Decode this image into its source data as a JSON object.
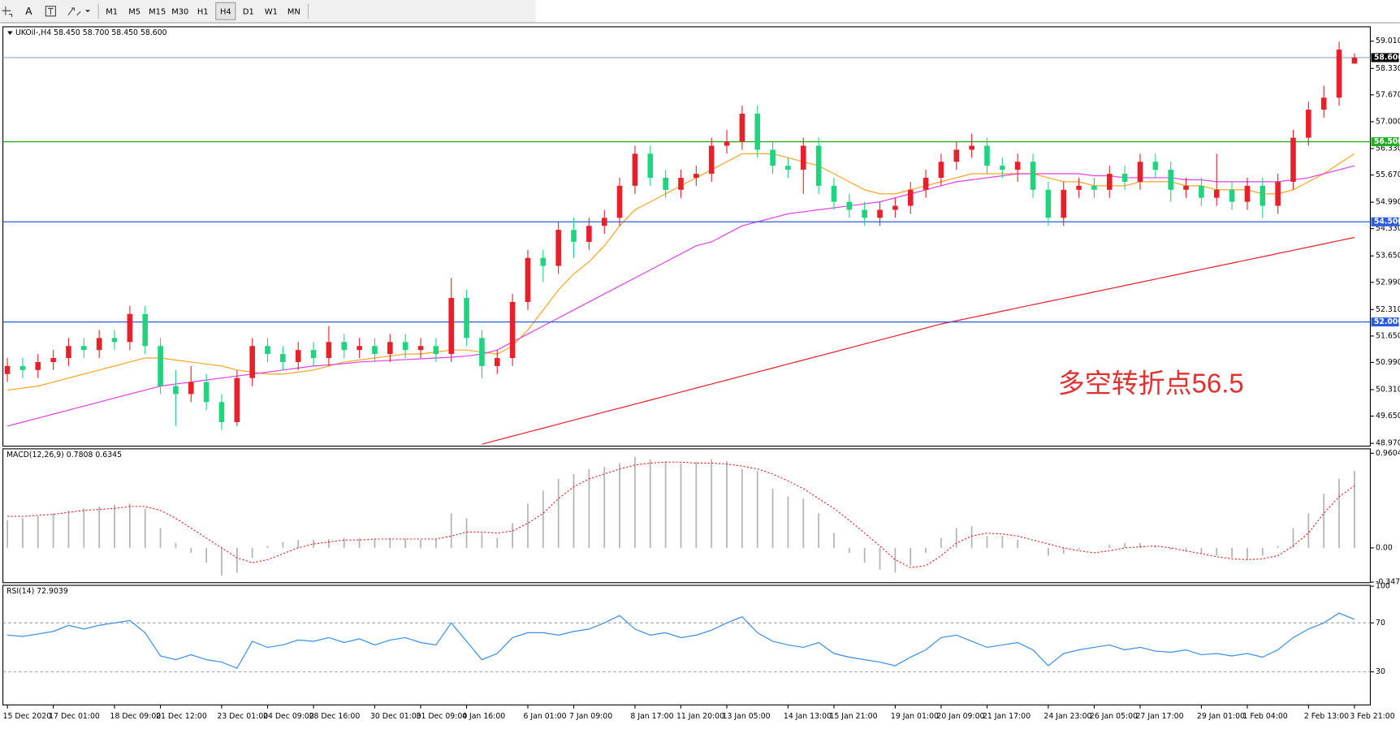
{
  "toolbar": {
    "tools": [
      "A"
    ],
    "timeframes": [
      "M1",
      "M5",
      "M15",
      "M30",
      "H1",
      "H4",
      "D1",
      "W1",
      "MN"
    ],
    "active_timeframe": 5
  },
  "chart_data": [
    {
      "type": "candlestick",
      "title": "UKOil-,H4  58.450 58.700 58.450 58.600",
      "categories": [
        "15 Dec 2020",
        null,
        null,
        "17 Dec 01:00",
        null,
        null,
        null,
        "18 Dec 09:00",
        null,
        null,
        "21 Dec 12:00",
        null,
        null,
        null,
        "23 Dec 01:00",
        null,
        null,
        "24 Dec 09:00",
        null,
        null,
        "28 Dec 16:00",
        null,
        null,
        null,
        "30 Dec 01:00",
        null,
        null,
        "31 Dec 09:00",
        null,
        null,
        "4 Jan 16:00",
        null,
        null,
        null,
        "6 Jan 01:00",
        null,
        null,
        "7 Jan 09:00",
        null,
        null,
        null,
        "8 Jan 17:00",
        null,
        null,
        "11 Jan 20:00",
        null,
        null,
        "13 Jan 05:00",
        null,
        null,
        null,
        "14 Jan 13:00",
        null,
        null,
        "15 Jan 21:00",
        null,
        null,
        null,
        "19 Jan 01:00",
        null,
        null,
        "20 Jan 09:00",
        null,
        null,
        "21 Jan 17:00",
        null,
        null,
        null,
        "24 Jan 23:00",
        null,
        null,
        "26 Jan 05:00",
        null,
        null,
        "27 Jan 17:00",
        null,
        null,
        null,
        "29 Jan 01:00",
        null,
        null,
        "1 Feb 04:00",
        null,
        null,
        null,
        "2 Feb 13:00",
        null,
        null,
        "3 Feb 21:00"
      ],
      "open": [
        50.7,
        50.9,
        50.8,
        51.0,
        51.1,
        51.4,
        51.3,
        51.6,
        51.5,
        52.2,
        51.4,
        50.4,
        50.2,
        50.5,
        50.0,
        49.5,
        50.6,
        51.4,
        51.2,
        51.0,
        51.3,
        51.1,
        51.5,
        51.3,
        51.4,
        51.2,
        51.5,
        51.3,
        51.4,
        51.2,
        52.6,
        51.6,
        50.9,
        51.1,
        52.5,
        53.6,
        53.4,
        54.3,
        54.0,
        54.4,
        54.6,
        55.4,
        56.2,
        55.6,
        55.3,
        55.6,
        55.7,
        56.4,
        56.5,
        57.2,
        56.3,
        55.9,
        55.8,
        56.4,
        55.4,
        55.0,
        54.8,
        54.6,
        54.8,
        54.9,
        55.3,
        55.6,
        56.0,
        56.3,
        56.4,
        55.9,
        55.8,
        56.0,
        55.3,
        54.6,
        55.3,
        55.4,
        55.3,
        55.7,
        55.5,
        56.0,
        55.8,
        55.3,
        55.4,
        55.1,
        55.3,
        55.0,
        55.4,
        54.9,
        55.5,
        56.6,
        57.3,
        57.6,
        58.45
      ],
      "high": [
        51.1,
        51.1,
        51.2,
        51.3,
        51.6,
        51.6,
        51.8,
        51.8,
        52.4,
        52.4,
        51.6,
        50.8,
        50.9,
        50.7,
        50.2,
        50.8,
        51.6,
        51.6,
        51.4,
        51.5,
        51.5,
        51.9,
        51.7,
        51.6,
        51.6,
        51.7,
        51.7,
        51.6,
        51.6,
        53.1,
        52.8,
        51.8,
        51.3,
        52.7,
        53.8,
        53.8,
        54.5,
        54.6,
        54.6,
        54.8,
        55.6,
        56.4,
        56.4,
        55.8,
        55.8,
        55.9,
        56.6,
        56.8,
        57.4,
        57.4,
        56.5,
        56.1,
        56.6,
        56.6,
        55.6,
        55.2,
        55.0,
        55.0,
        55.1,
        55.5,
        55.8,
        56.2,
        56.5,
        56.7,
        56.6,
        56.1,
        56.2,
        56.2,
        55.5,
        55.5,
        55.6,
        55.6,
        55.9,
        55.9,
        56.2,
        56.2,
        56.0,
        55.6,
        55.6,
        56.2,
        55.5,
        55.6,
        55.6,
        55.7,
        56.8,
        57.5,
        57.9,
        59.0,
        58.7
      ],
      "low": [
        50.5,
        50.6,
        50.6,
        50.8,
        50.9,
        51.1,
        51.1,
        51.3,
        51.3,
        51.2,
        50.2,
        49.4,
        50.0,
        49.8,
        49.3,
        49.4,
        50.4,
        51.0,
        50.8,
        50.8,
        50.9,
        50.9,
        51.1,
        51.1,
        51.0,
        51.0,
        51.1,
        51.1,
        51.0,
        51.0,
        51.4,
        50.6,
        50.7,
        50.9,
        52.3,
        53.0,
        53.2,
        53.6,
        53.8,
        54.2,
        54.4,
        55.2,
        55.4,
        55.1,
        55.1,
        55.4,
        55.5,
        56.2,
        56.3,
        56.1,
        55.7,
        55.6,
        55.2,
        55.2,
        54.8,
        54.6,
        54.4,
        54.4,
        54.6,
        54.7,
        55.1,
        55.4,
        55.8,
        56.1,
        55.7,
        55.6,
        55.5,
        55.1,
        54.4,
        54.4,
        55.1,
        55.1,
        55.1,
        55.3,
        55.3,
        55.6,
        55.0,
        55.1,
        54.9,
        54.9,
        54.8,
        54.8,
        54.6,
        54.7,
        55.3,
        56.4,
        57.1,
        57.4,
        58.45
      ],
      "close": [
        50.9,
        50.8,
        51.0,
        51.1,
        51.4,
        51.3,
        51.6,
        51.5,
        52.2,
        51.4,
        50.4,
        50.2,
        50.5,
        50.0,
        49.5,
        50.6,
        51.4,
        51.2,
        51.0,
        51.3,
        51.1,
        51.5,
        51.3,
        51.4,
        51.2,
        51.5,
        51.3,
        51.4,
        51.2,
        52.6,
        51.6,
        50.9,
        51.1,
        52.5,
        53.6,
        53.4,
        54.3,
        54.0,
        54.4,
        54.6,
        55.4,
        56.2,
        55.6,
        55.3,
        55.6,
        55.7,
        56.4,
        56.5,
        57.2,
        56.3,
        55.9,
        55.8,
        56.4,
        55.4,
        55.0,
        54.8,
        54.6,
        54.8,
        54.9,
        55.3,
        55.6,
        56.0,
        56.3,
        56.4,
        55.9,
        55.8,
        56.0,
        55.3,
        54.6,
        55.3,
        55.4,
        55.3,
        55.7,
        55.5,
        56.0,
        55.8,
        55.3,
        55.4,
        55.1,
        55.3,
        55.0,
        55.4,
        54.9,
        55.5,
        56.6,
        57.3,
        57.6,
        58.8,
        58.6
      ],
      "up_color": "#e8202a",
      "down_color": "#1fd37f",
      "moving_averages": [
        {
          "color": "#f5a623",
          "values": [
            50.3,
            50.35,
            50.4,
            50.5,
            50.6,
            50.7,
            50.8,
            50.9,
            51.0,
            51.1,
            51.1,
            51.05,
            51.0,
            50.95,
            50.9,
            50.8,
            50.75,
            50.7,
            50.7,
            50.75,
            50.8,
            50.9,
            51.0,
            51.05,
            51.1,
            51.15,
            51.2,
            51.2,
            51.25,
            51.3,
            51.3,
            51.25,
            51.2,
            51.4,
            51.8,
            52.3,
            52.8,
            53.2,
            53.5,
            53.9,
            54.4,
            54.8,
            55.0,
            55.2,
            55.4,
            55.6,
            55.8,
            56.0,
            56.2,
            56.2,
            56.2,
            56.1,
            56.0,
            55.9,
            55.7,
            55.5,
            55.3,
            55.2,
            55.2,
            55.3,
            55.4,
            55.5,
            55.6,
            55.7,
            55.7,
            55.7,
            55.7,
            55.7,
            55.6,
            55.5,
            55.5,
            55.4,
            55.4,
            55.4,
            55.5,
            55.5,
            55.5,
            55.4,
            55.4,
            55.3,
            55.3,
            55.3,
            55.2,
            55.2,
            55.3,
            55.5,
            55.7,
            55.95,
            56.2
          ]
        },
        {
          "color": "#e040e0",
          "values": [
            49.4,
            49.5,
            49.6,
            49.7,
            49.8,
            49.9,
            50.0,
            50.1,
            50.2,
            50.3,
            50.4,
            50.45,
            50.5,
            50.55,
            50.6,
            50.65,
            50.7,
            50.75,
            50.8,
            50.85,
            50.9,
            50.93,
            50.96,
            51.0,
            51.02,
            51.04,
            51.06,
            51.08,
            51.1,
            51.12,
            51.15,
            51.2,
            51.3,
            51.5,
            51.7,
            51.9,
            52.1,
            52.3,
            52.5,
            52.7,
            52.9,
            53.1,
            53.3,
            53.5,
            53.7,
            53.9,
            54.0,
            54.2,
            54.4,
            54.5,
            54.6,
            54.7,
            54.75,
            54.8,
            54.85,
            54.9,
            54.95,
            55.0,
            55.1,
            55.2,
            55.3,
            55.4,
            55.5,
            55.55,
            55.6,
            55.65,
            55.7,
            55.7,
            55.7,
            55.7,
            55.7,
            55.65,
            55.65,
            55.6,
            55.6,
            55.6,
            55.6,
            55.55,
            55.55,
            55.5,
            55.5,
            55.5,
            55.5,
            55.5,
            55.55,
            55.6,
            55.7,
            55.8,
            55.9
          ]
        },
        {
          "color": "#e8202a",
          "values": [
            null,
            null,
            null,
            null,
            null,
            null,
            null,
            null,
            null,
            null,
            null,
            null,
            null,
            null,
            null,
            null,
            null,
            null,
            null,
            null,
            null,
            null,
            null,
            null,
            null,
            null,
            null,
            null,
            null,
            null,
            null,
            48.95,
            49.05,
            49.15,
            49.25,
            49.35,
            49.45,
            49.55,
            49.65,
            49.75,
            49.85,
            49.95,
            50.05,
            50.15,
            50.25,
            50.35,
            50.45,
            50.55,
            50.65,
            50.75,
            50.85,
            50.95,
            51.05,
            51.15,
            51.25,
            51.35,
            51.45,
            51.55,
            51.65,
            51.75,
            51.85,
            51.95,
            52.03,
            52.11,
            52.19,
            52.27,
            52.35,
            52.43,
            52.51,
            52.59,
            52.67,
            52.75,
            52.83,
            52.91,
            52.99,
            53.07,
            53.15,
            53.23,
            53.31,
            53.39,
            53.47,
            53.55,
            53.63,
            53.71,
            53.79,
            53.87,
            53.95,
            54.03,
            54.11
          ]
        }
      ],
      "hlines": [
        {
          "value": 58.6,
          "label": "58.600",
          "color": "#000000",
          "line_color": "#a9b4c2"
        },
        {
          "value": 56.5,
          "label": "56.500",
          "color": "#22b022"
        },
        {
          "value": 54.5,
          "label": "54.500",
          "color": "#2a5be0"
        },
        {
          "value": 52.0,
          "label": "52.000",
          "color": "#2a5be0"
        }
      ],
      "annotation": {
        "text": "多空转折点56.5",
        "color": "#e03030"
      },
      "ylim": [
        48.9,
        59.37
      ],
      "yticks": [
        {
          "value": 59.01,
          "label": "59.010"
        },
        {
          "value": 58.33,
          "label": "58.330"
        },
        {
          "value": 57.67,
          "label": "57.670"
        },
        {
          "value": 57.0,
          "label": "57.000"
        },
        {
          "value": 56.33,
          "label": "56.330"
        },
        {
          "value": 55.67,
          "label": "55.670"
        },
        {
          "value": 54.99,
          "label": "54.990"
        },
        {
          "value": 54.33,
          "label": "54.330"
        },
        {
          "value": 53.65,
          "label": "53.650"
        },
        {
          "value": 52.99,
          "label": "52.990"
        },
        {
          "value": 52.31,
          "label": "52.310"
        },
        {
          "value": 51.65,
          "label": "51.650"
        },
        {
          "value": 50.99,
          "label": "50.990"
        },
        {
          "value": 50.31,
          "label": "50.310"
        },
        {
          "value": 49.65,
          "label": "49.650"
        },
        {
          "value": 48.97,
          "label": "48.970"
        }
      ]
    },
    {
      "type": "macd",
      "title": "MACD(12,26,9) 0.7808 0.6345",
      "values": [
        0.28,
        0.3,
        0.32,
        0.35,
        0.38,
        0.4,
        0.42,
        0.44,
        0.45,
        0.4,
        0.2,
        0.05,
        -0.05,
        -0.15,
        -0.28,
        -0.25,
        -0.1,
        0.02,
        0.06,
        0.08,
        0.08,
        0.09,
        0.1,
        0.1,
        0.09,
        0.1,
        0.09,
        0.08,
        0.09,
        0.35,
        0.3,
        0.15,
        0.1,
        0.25,
        0.45,
        0.58,
        0.7,
        0.75,
        0.8,
        0.82,
        0.86,
        0.92,
        0.9,
        0.88,
        0.86,
        0.87,
        0.9,
        0.88,
        0.8,
        0.78,
        0.6,
        0.52,
        0.5,
        0.35,
        0.15,
        -0.05,
        -0.15,
        -0.22,
        -0.25,
        -0.18,
        -0.05,
        0.1,
        0.2,
        0.22,
        0.12,
        0.12,
        0.08,
        0.0,
        -0.08,
        -0.06,
        -0.02,
        0.0,
        0.03,
        0.05,
        0.05,
        0.02,
        -0.02,
        -0.04,
        -0.06,
        -0.08,
        -0.1,
        -0.12,
        -0.08,
        0.02,
        0.2,
        0.35,
        0.55,
        0.7,
        0.78
      ],
      "color": "#b4b4b4",
      "signal": [
        0.32,
        0.32,
        0.33,
        0.34,
        0.36,
        0.38,
        0.39,
        0.4,
        0.42,
        0.42,
        0.38,
        0.3,
        0.2,
        0.1,
        0.0,
        -0.1,
        -0.15,
        -0.12,
        -0.06,
        0.0,
        0.04,
        0.06,
        0.08,
        0.08,
        0.09,
        0.09,
        0.09,
        0.09,
        0.09,
        0.12,
        0.16,
        0.16,
        0.15,
        0.17,
        0.25,
        0.35,
        0.5,
        0.62,
        0.7,
        0.75,
        0.8,
        0.84,
        0.86,
        0.87,
        0.87,
        0.86,
        0.86,
        0.85,
        0.83,
        0.8,
        0.75,
        0.68,
        0.6,
        0.5,
        0.4,
        0.28,
        0.15,
        0.02,
        -0.12,
        -0.2,
        -0.18,
        -0.08,
        0.05,
        0.12,
        0.15,
        0.14,
        0.12,
        0.08,
        0.04,
        0.0,
        -0.03,
        -0.05,
        -0.03,
        0.0,
        0.01,
        0.02,
        0.0,
        -0.03,
        -0.06,
        -0.09,
        -0.11,
        -0.12,
        -0.11,
        -0.08,
        0.02,
        0.15,
        0.35,
        0.52,
        0.63
      ],
      "signal_color": "#e02020",
      "ylim": [
        -0.353,
        1.005
      ],
      "yticks": [
        0.9604,
        {
          "value": 0,
          "label": "0.00"
        },
        -0.3473
      ]
    },
    {
      "type": "line",
      "title": "RSI(14) 72.9039",
      "values": [
        60,
        59,
        61,
        63,
        68,
        65,
        68,
        70,
        72,
        62,
        43,
        40,
        44,
        40,
        38,
        33,
        55,
        50,
        52,
        56,
        55,
        58,
        54,
        57,
        52,
        56,
        58,
        54,
        52,
        70,
        55,
        40,
        45,
        58,
        62,
        62,
        60,
        63,
        65,
        70,
        76,
        65,
        60,
        62,
        58,
        60,
        64,
        70,
        75,
        62,
        55,
        52,
        50,
        54,
        45,
        42,
        40,
        38,
        35,
        42,
        48,
        58,
        60,
        55,
        50,
        52,
        54,
        48,
        35,
        45,
        48,
        50,
        52,
        48,
        50,
        47,
        46,
        48,
        44,
        45,
        43,
        45,
        42,
        48,
        58,
        65,
        70,
        78,
        72.9039
      ],
      "color": "#3a8ee6",
      "levels": [
        70,
        30
      ],
      "ylim": [
        3,
        100.7
      ],
      "yticks": [
        100,
        70,
        30
      ]
    }
  ]
}
